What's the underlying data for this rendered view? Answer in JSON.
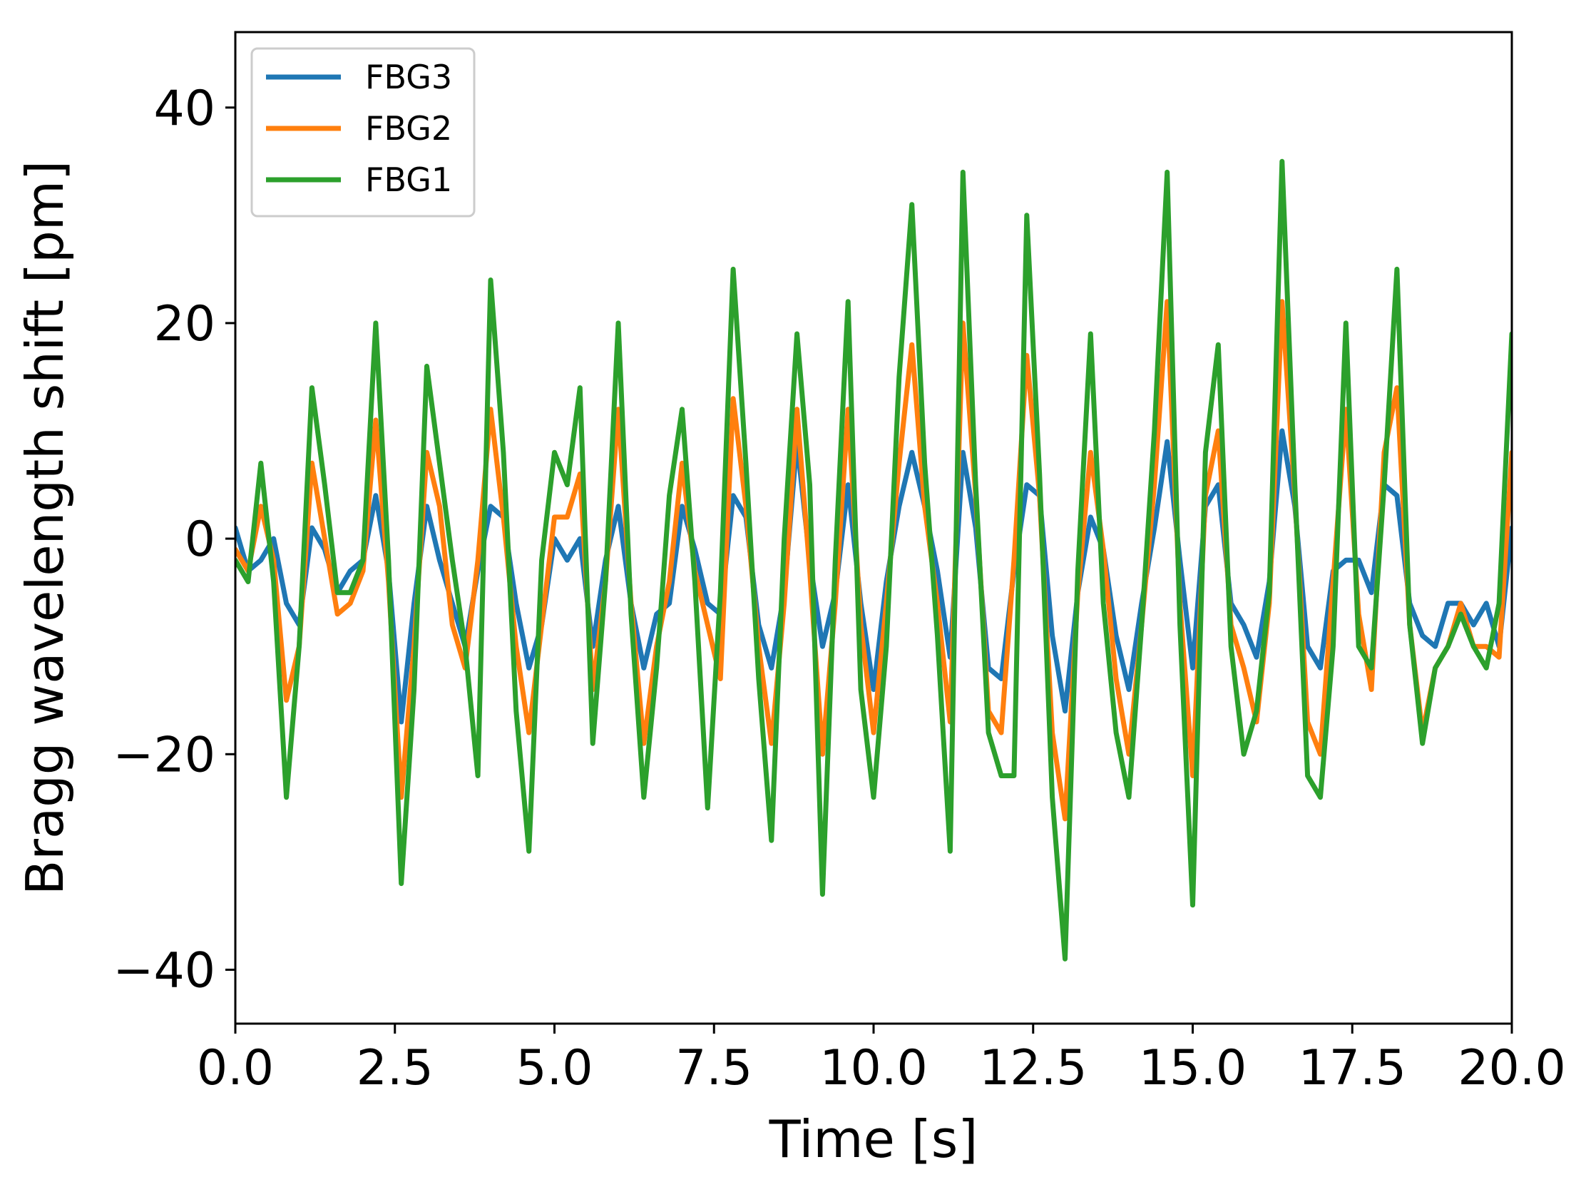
{
  "chart_data": {
    "type": "line",
    "title": "",
    "xlabel": "Time [s]",
    "ylabel": "Bragg wavelength shift [pm]",
    "xlim": [
      0,
      20
    ],
    "ylim": [
      -45,
      47
    ],
    "xticks": [
      0,
      2.5,
      5,
      7.5,
      10,
      12.5,
      15,
      17.5,
      20
    ],
    "xtick_labels": [
      "0.0",
      "2.5",
      "5.0",
      "7.5",
      "10.0",
      "12.5",
      "15.0",
      "17.5",
      "20.0"
    ],
    "yticks": [
      -40,
      -20,
      0,
      20,
      40
    ],
    "ytick_labels": [
      "−40",
      "−20",
      "0",
      "20",
      "40"
    ],
    "grid": false,
    "legend_position": "upper-left",
    "series": [
      {
        "name": "FBG3",
        "color": "#1f77b4",
        "x": [
          0.0,
          0.2,
          0.4,
          0.6,
          0.8,
          1.0,
          1.2,
          1.4,
          1.6,
          1.8,
          2.0,
          2.2,
          2.4,
          2.6,
          2.8,
          3.0,
          3.2,
          3.4,
          3.6,
          3.8,
          4.0,
          4.2,
          4.4,
          4.6,
          4.8,
          5.0,
          5.2,
          5.4,
          5.6,
          5.8,
          6.0,
          6.2,
          6.4,
          6.6,
          6.8,
          7.0,
          7.2,
          7.4,
          7.6,
          7.8,
          8.0,
          8.2,
          8.4,
          8.6,
          8.8,
          9.0,
          9.2,
          9.4,
          9.6,
          9.8,
          10.0,
          10.2,
          10.4,
          10.6,
          10.8,
          11.0,
          11.2,
          11.4,
          11.6,
          11.8,
          12.0,
          12.2,
          12.4,
          12.6,
          12.8,
          13.0,
          13.2,
          13.4,
          13.6,
          13.8,
          14.0,
          14.2,
          14.4,
          14.6,
          14.8,
          15.0,
          15.2,
          15.4,
          15.6,
          15.8,
          16.0,
          16.2,
          16.4,
          16.6,
          16.8,
          17.0,
          17.2,
          17.4,
          17.6,
          17.8,
          18.0,
          18.2,
          18.4,
          18.6,
          18.8,
          19.0,
          19.2,
          19.4,
          19.6,
          19.8,
          20.0
        ],
        "values": [
          1,
          -3,
          -2,
          0,
          -6,
          -8,
          1,
          -1,
          -5,
          -3,
          -2,
          4,
          -3,
          -17,
          -6,
          3,
          -2,
          -6,
          -10,
          -3,
          3,
          2,
          -6,
          -12,
          -8,
          0,
          -2,
          0,
          -10,
          -2,
          3,
          -6,
          -12,
          -7,
          -6,
          3,
          -1,
          -6,
          -7,
          4,
          2,
          -8,
          -12,
          -5,
          9,
          -2,
          -10,
          -5,
          5,
          -6,
          -14,
          -4,
          3,
          8,
          3,
          -3,
          -11,
          8,
          1,
          -12,
          -13,
          -3,
          5,
          4,
          -9,
          -16,
          -5,
          2,
          -1,
          -9,
          -14,
          -6,
          1,
          9,
          -2,
          -12,
          3,
          5,
          -6,
          -8,
          -11,
          -4,
          10,
          3,
          -10,
          -12,
          -3,
          -2,
          -2,
          -5,
          5,
          4,
          -6,
          -9,
          -10,
          -6,
          -6,
          -8,
          -6,
          -10,
          1
        ]
      },
      {
        "name": "FBG2",
        "color": "#ff7f0e",
        "x": [
          0.0,
          0.2,
          0.4,
          0.6,
          0.8,
          1.0,
          1.2,
          1.4,
          1.6,
          1.8,
          2.0,
          2.2,
          2.4,
          2.6,
          2.8,
          3.0,
          3.2,
          3.4,
          3.6,
          3.8,
          4.0,
          4.2,
          4.4,
          4.6,
          4.8,
          5.0,
          5.2,
          5.4,
          5.6,
          5.8,
          6.0,
          6.2,
          6.4,
          6.6,
          6.8,
          7.0,
          7.2,
          7.4,
          7.6,
          7.8,
          8.0,
          8.2,
          8.4,
          8.6,
          8.8,
          9.0,
          9.2,
          9.4,
          9.6,
          9.8,
          10.0,
          10.2,
          10.4,
          10.6,
          10.8,
          11.0,
          11.2,
          11.4,
          11.6,
          11.8,
          12.0,
          12.2,
          12.4,
          12.6,
          12.8,
          13.0,
          13.2,
          13.4,
          13.6,
          13.8,
          14.0,
          14.2,
          14.4,
          14.6,
          14.8,
          15.0,
          15.2,
          15.4,
          15.6,
          15.8,
          16.0,
          16.2,
          16.4,
          16.6,
          16.8,
          17.0,
          17.2,
          17.4,
          17.6,
          17.8,
          18.0,
          18.2,
          18.4,
          18.6,
          18.8,
          19.0,
          19.2,
          19.4,
          19.6,
          19.8,
          20.0
        ],
        "values": [
          -1,
          -3,
          3,
          -2,
          -15,
          -10,
          7,
          0,
          -7,
          -6,
          -3,
          11,
          -4,
          -24,
          -10,
          8,
          3,
          -8,
          -12,
          -2,
          12,
          2,
          -10,
          -18,
          -8,
          2,
          2,
          6,
          -14,
          -4,
          12,
          -6,
          -19,
          -10,
          -4,
          7,
          -3,
          -8,
          -13,
          13,
          3,
          -10,
          -19,
          -6,
          12,
          -3,
          -20,
          -6,
          12,
          -8,
          -18,
          -6,
          7,
          18,
          3,
          -6,
          -17,
          20,
          4,
          -16,
          -18,
          -2,
          17,
          4,
          -18,
          -26,
          -5,
          8,
          -1,
          -13,
          -20,
          -8,
          5,
          22,
          -6,
          -22,
          4,
          10,
          -8,
          -12,
          -17,
          -6,
          22,
          4,
          -17,
          -20,
          -4,
          12,
          -7,
          -14,
          8,
          14,
          -8,
          -18,
          -12,
          -10,
          -6,
          -10,
          -10,
          -11,
          8
        ]
      },
      {
        "name": "FBG1",
        "color": "#2ca02c",
        "x": [
          0.0,
          0.2,
          0.4,
          0.6,
          0.8,
          1.0,
          1.2,
          1.4,
          1.6,
          1.8,
          2.0,
          2.2,
          2.4,
          2.6,
          2.8,
          3.0,
          3.2,
          3.4,
          3.6,
          3.8,
          4.0,
          4.2,
          4.4,
          4.6,
          4.8,
          5.0,
          5.2,
          5.4,
          5.6,
          5.8,
          6.0,
          6.2,
          6.4,
          6.6,
          6.8,
          7.0,
          7.2,
          7.4,
          7.6,
          7.8,
          8.0,
          8.2,
          8.4,
          8.6,
          8.8,
          9.0,
          9.2,
          9.4,
          9.6,
          9.8,
          10.0,
          10.2,
          10.4,
          10.6,
          10.8,
          11.0,
          11.2,
          11.4,
          11.6,
          11.8,
          12.0,
          12.2,
          12.4,
          12.6,
          12.8,
          13.0,
          13.2,
          13.4,
          13.6,
          13.8,
          14.0,
          14.2,
          14.4,
          14.6,
          14.8,
          15.0,
          15.2,
          15.4,
          15.6,
          15.8,
          16.0,
          16.2,
          16.4,
          16.6,
          16.8,
          17.0,
          17.2,
          17.4,
          17.6,
          17.8,
          18.0,
          18.2,
          18.4,
          18.6,
          18.8,
          19.0,
          19.2,
          19.4,
          19.6,
          19.8,
          20.0
        ],
        "values": [
          -2,
          -4,
          7,
          -4,
          -24,
          -10,
          14,
          5,
          -5,
          -5,
          -2,
          20,
          -2,
          -32,
          -14,
          16,
          7,
          -2,
          -10,
          -22,
          24,
          8,
          -16,
          -29,
          -2,
          8,
          5,
          14,
          -19,
          -4,
          20,
          -7,
          -24,
          -12,
          4,
          12,
          -4,
          -25,
          -5,
          25,
          7,
          -13,
          -28,
          0,
          19,
          5,
          -33,
          -2,
          22,
          -14,
          -24,
          -10,
          15,
          31,
          7,
          -9,
          -29,
          34,
          5,
          -18,
          -22,
          -22,
          30,
          6,
          -24,
          -39,
          -3,
          19,
          -6,
          -18,
          -24,
          -8,
          10,
          34,
          -8,
          -34,
          8,
          18,
          -10,
          -20,
          -16,
          -5,
          35,
          5,
          -22,
          -24,
          -10,
          20,
          -10,
          -12,
          5,
          25,
          -8,
          -19,
          -12,
          -10,
          -7,
          -10,
          -12,
          -6,
          19
        ]
      }
    ]
  }
}
